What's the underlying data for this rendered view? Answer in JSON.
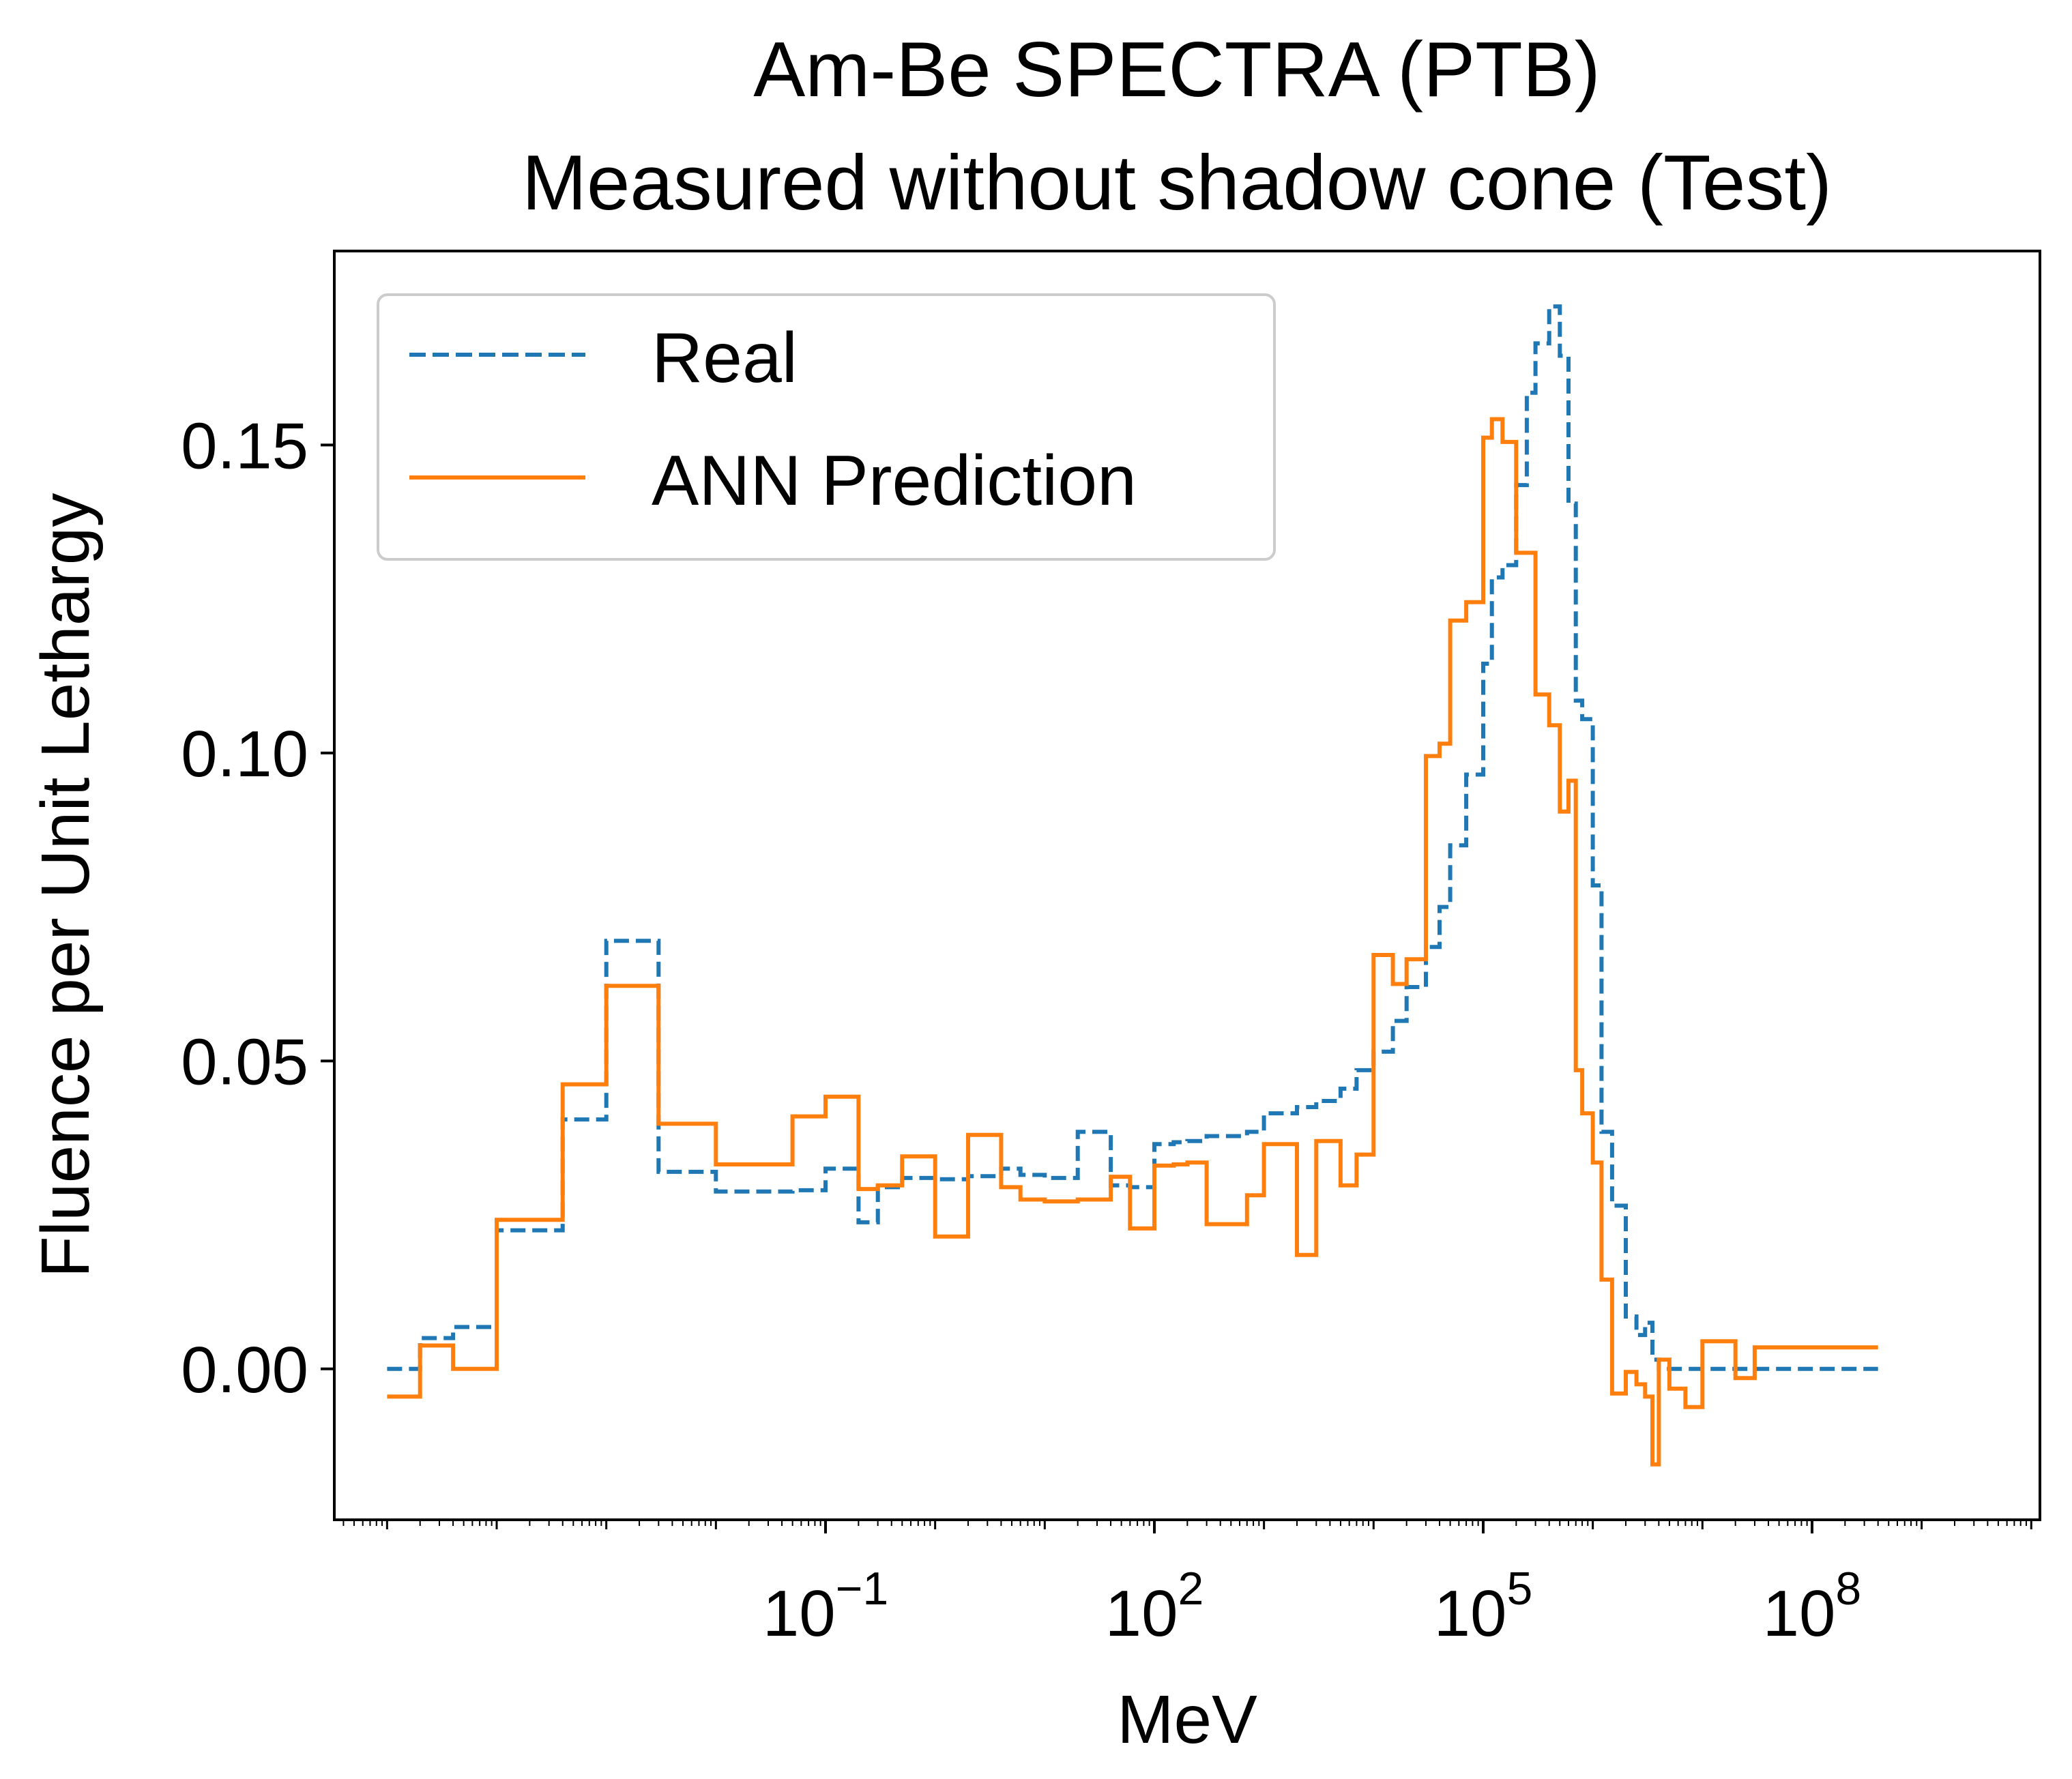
{
  "chart_data": {
    "type": "line",
    "title": "Am-Be SPECTRA (PTB)",
    "subtitle": "Measured without shadow cone (Test)",
    "xlabel": "MeV",
    "ylabel": "Fluence per Unit Lethargy",
    "xscale": "log",
    "xlim": [
      3.3e-06,
      12000000000
    ],
    "ylim": [
      -0.0245,
      0.1815
    ],
    "x_ticks": [
      {
        "value": 0.1,
        "base": "10",
        "exp": "−1"
      },
      {
        "value": 100,
        "base": "10",
        "exp": "2"
      },
      {
        "value": 100000,
        "base": "10",
        "exp": "5"
      },
      {
        "value": 100000000,
        "base": "10",
        "exp": "8"
      }
    ],
    "y_ticks": [
      {
        "value": 0.0,
        "label": "0.00"
      },
      {
        "value": 0.05,
        "label": "0.05"
      },
      {
        "value": 0.1,
        "label": "0.10"
      },
      {
        "value": 0.15,
        "label": "0.15"
      }
    ],
    "grid": false,
    "legend_position": "top-left",
    "series": [
      {
        "name": "Real",
        "color": "#1f77b4",
        "style": "dashed",
        "x": [
          1e-05,
          2e-05,
          4e-05,
          0.0001,
          0.0004,
          0.001,
          0.003,
          0.01,
          0.05,
          0.1,
          0.2,
          0.3,
          0.5,
          1,
          2,
          4,
          6,
          10,
          20,
          40,
          60,
          100,
          150,
          200,
          300,
          700,
          1000,
          2000,
          3000,
          5000,
          7000,
          10000,
          15000,
          20000,
          30000,
          40000,
          50000,
          70000,
          100000,
          120000,
          150000,
          200000,
          250000,
          300000,
          400000,
          500000,
          600000,
          700000,
          800000,
          1000000,
          1200000,
          1500000,
          2000000,
          2500000,
          3000000,
          3500000,
          4000000,
          5000000,
          7000000,
          10000000,
          20000000,
          30000000,
          50000000,
          100000000,
          200000000,
          400000000
        ],
        "y": [
          0.0,
          0.005,
          0.0068,
          0.0225,
          0.0405,
          0.0695,
          0.032,
          0.0288,
          0.029,
          0.0325,
          0.0238,
          0.0295,
          0.031,
          0.0308,
          0.0313,
          0.0325,
          0.0315,
          0.031,
          0.0385,
          0.0298,
          0.0295,
          0.0365,
          0.0368,
          0.037,
          0.0378,
          0.0385,
          0.0415,
          0.0425,
          0.0435,
          0.0455,
          0.0485,
          0.0515,
          0.0565,
          0.062,
          0.0685,
          0.075,
          0.085,
          0.0965,
          0.1145,
          0.1285,
          0.1305,
          0.1435,
          0.1585,
          0.1665,
          0.1725,
          0.1645,
          0.1405,
          0.1085,
          0.1055,
          0.0785,
          0.0385,
          0.0265,
          0.0085,
          0.0055,
          0.0075,
          0.0015,
          0.0,
          0.0,
          0.0,
          0.0,
          0.0,
          0.0,
          0.0,
          0.0,
          0.0,
          0.0
        ]
      },
      {
        "name": "ANN Prediction",
        "color": "#ff7f0e",
        "style": "solid",
        "x": [
          1e-05,
          2e-05,
          4e-05,
          0.0001,
          0.0004,
          0.001,
          0.003,
          0.01,
          0.05,
          0.1,
          0.2,
          0.3,
          0.5,
          1,
          2,
          4,
          6,
          10,
          20,
          40,
          60,
          100,
          150,
          200,
          300,
          700,
          1000,
          2000,
          3000,
          5000,
          7000,
          10000,
          15000,
          20000,
          30000,
          40000,
          50000,
          70000,
          100000,
          120000,
          150000,
          200000,
          250000,
          300000,
          400000,
          500000,
          600000,
          700000,
          800000,
          1000000,
          1200000,
          1500000,
          2000000,
          2500000,
          3000000,
          3500000,
          4000000,
          5000000,
          7000000,
          10000000,
          20000000,
          30000000,
          50000000,
          100000000,
          200000000,
          400000000
        ],
        "y": [
          -0.0045,
          0.0038,
          0.0,
          0.0242,
          0.0462,
          0.0622,
          0.0398,
          0.0332,
          0.041,
          0.0442,
          0.0292,
          0.0298,
          0.0345,
          0.0215,
          0.038,
          0.0295,
          0.0275,
          0.0272,
          0.0275,
          0.0312,
          0.0228,
          0.033,
          0.0332,
          0.0335,
          0.0235,
          0.0282,
          0.0365,
          0.0185,
          0.037,
          0.0298,
          0.0348,
          0.0672,
          0.0625,
          0.0665,
          0.0995,
          0.1015,
          0.1215,
          0.1245,
          0.1512,
          0.1542,
          0.1505,
          0.1325,
          0.1325,
          0.1095,
          0.1045,
          0.0905,
          0.0955,
          0.0485,
          0.0415,
          0.0335,
          0.0145,
          -0.004,
          -0.0005,
          -0.0025,
          -0.0045,
          -0.0155,
          0.0015,
          -0.0032,
          -0.0062,
          0.0045,
          -0.0015,
          0.0035,
          0.0035,
          0.0035,
          0.0035,
          0.0035
        ]
      }
    ]
  }
}
